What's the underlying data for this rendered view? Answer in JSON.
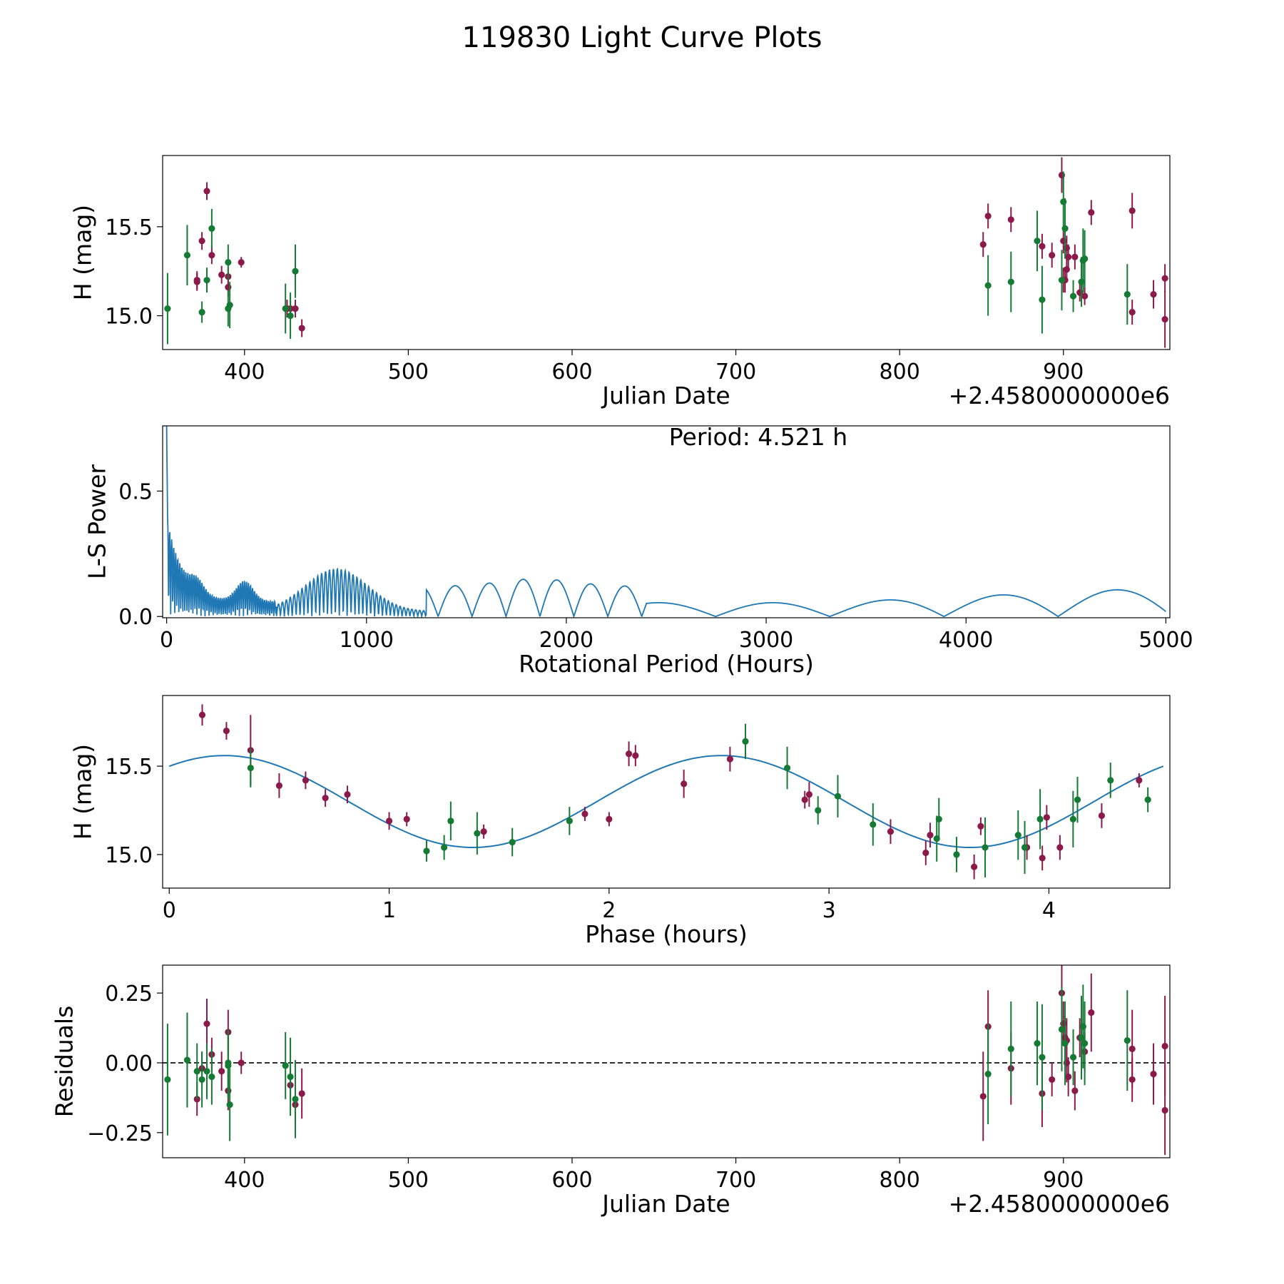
{
  "figure": {
    "title": "119830 Light Curve Plots",
    "colors": {
      "red_filter": "#8b1a4b",
      "green_filter": "#157a34",
      "model": "#1f77b4",
      "axis": "#000000"
    }
  },
  "chart_data": [
    {
      "id": "lc",
      "type": "scatter",
      "xlabel": "Julian Date",
      "ylabel": "H (mag)",
      "offset_label": "+2.4580000000e6",
      "xlim": [
        350,
        965
      ],
      "ylim": [
        14.81,
        15.9
      ],
      "xticks": [
        400,
        500,
        600,
        700,
        800,
        900
      ],
      "yticks": [
        15.0,
        15.5
      ],
      "series": [
        {
          "name": "red",
          "points": [
            [
              371,
              15.19
            ],
            [
              371,
              15.2
            ],
            [
              374,
              15.42
            ],
            [
              377,
              15.7
            ],
            [
              380,
              15.34
            ],
            [
              386,
              15.23
            ],
            [
              390,
              15.16
            ],
            [
              390,
              15.22
            ],
            [
              398,
              15.3
            ],
            [
              426,
              15.04
            ],
            [
              428,
              15.04
            ],
            [
              431,
              15.04
            ],
            [
              435,
              14.93
            ],
            [
              851,
              15.4
            ],
            [
              854,
              15.56
            ],
            [
              868,
              15.54
            ],
            [
              887,
              15.39
            ],
            [
              893,
              15.34
            ],
            [
              899,
              15.79
            ],
            [
              900,
              15.42
            ],
            [
              900,
              15.2
            ],
            [
              901,
              15.2
            ],
            [
              902,
              15.38
            ],
            [
              902,
              15.26
            ],
            [
              903,
              15.33
            ],
            [
              907,
              15.33
            ],
            [
              910,
              15.13
            ],
            [
              913,
              15.11
            ],
            [
              917,
              15.58
            ],
            [
              942,
              15.59
            ],
            [
              942,
              15.02
            ],
            [
              955,
              15.12
            ],
            [
              962,
              15.21
            ],
            [
              962,
              14.98
            ]
          ],
          "errors": [
            0.05,
            0.05,
            0.05,
            0.05,
            0.05,
            0.05,
            0.05,
            0.05,
            0.03,
            0.05,
            0.05,
            0.05,
            0.05,
            0.07,
            0.07,
            0.07,
            0.07,
            0.07,
            0.1,
            0.07,
            0.07,
            0.07,
            0.07,
            0.07,
            0.07,
            0.07,
            0.05,
            0.05,
            0.07,
            0.1,
            0.07,
            0.08,
            0.08,
            0.16
          ]
        },
        {
          "name": "green",
          "points": [
            [
              353,
              15.04
            ],
            [
              365,
              15.34
            ],
            [
              374,
              15.02
            ],
            [
              377,
              15.2
            ],
            [
              380,
              15.49
            ],
            [
              390,
              15.04
            ],
            [
              390,
              15.3
            ],
            [
              391,
              15.06
            ],
            [
              425,
              15.04
            ],
            [
              428,
              15.0
            ],
            [
              431,
              15.25
            ],
            [
              854,
              15.17
            ],
            [
              868,
              15.19
            ],
            [
              884,
              15.42
            ],
            [
              887,
              15.09
            ],
            [
              899,
              15.2
            ],
            [
              900,
              15.64
            ],
            [
              901,
              15.49
            ],
            [
              906,
              15.11
            ],
            [
              911,
              15.19
            ],
            [
              912,
              15.31
            ],
            [
              913,
              15.32
            ],
            [
              939,
              15.12
            ]
          ],
          "errors": [
            0.2,
            0.17,
            0.06,
            0.07,
            0.11,
            0.1,
            0.1,
            0.13,
            0.14,
            0.13,
            0.15,
            0.17,
            0.17,
            0.17,
            0.19,
            0.17,
            0.17,
            0.17,
            0.09,
            0.14,
            0.18,
            0.16,
            0.17
          ]
        }
      ]
    },
    {
      "id": "ls",
      "type": "line",
      "xlabel": "Rotational Period (Hours)",
      "ylabel": "L-S Power",
      "annotation": "Period: 4.521 h",
      "xlim": [
        -20,
        5020
      ],
      "ylim": [
        -0.005,
        0.76
      ],
      "xticks": [
        0,
        1000,
        2000,
        3000,
        4000,
        5000
      ],
      "yticks": [
        0.0,
        0.5
      ],
      "series": [
        {
          "name": "power",
          "generator": "periodogram",
          "x_range": [
            0,
            5000
          ],
          "peak": [
            3,
            0.76
          ]
        }
      ]
    },
    {
      "id": "phase",
      "type": "scatter",
      "xlabel": "Phase (hours)",
      "ylabel": "H (mag)",
      "xlim": [
        -0.03,
        4.55
      ],
      "ylim": [
        14.81,
        15.9
      ],
      "xticks": [
        0,
        1,
        2,
        3,
        4
      ],
      "xtick_labels": [
        "0",
        "1",
        "2",
        "3",
        "4"
      ],
      "yticks": [
        15.0,
        15.5
      ],
      "model": {
        "mean": 15.3,
        "amplitude": 0.26,
        "period_hours": 2.26,
        "phase_peak": 0.25,
        "x_range": [
          0,
          4.52
        ]
      },
      "series": [
        {
          "name": "red",
          "points": [
            [
              0.15,
              15.79
            ],
            [
              0.26,
              15.7
            ],
            [
              0.37,
              15.59
            ],
            [
              0.5,
              15.39
            ],
            [
              0.62,
              15.42
            ],
            [
              0.71,
              15.32
            ],
            [
              0.81,
              15.34
            ],
            [
              1.0,
              15.19
            ],
            [
              1.08,
              15.2
            ],
            [
              1.43,
              15.13
            ],
            [
              1.89,
              15.23
            ],
            [
              2.0,
              15.2
            ],
            [
              2.09,
              15.57
            ],
            [
              2.12,
              15.56
            ],
            [
              2.34,
              15.4
            ],
            [
              2.55,
              15.54
            ],
            [
              2.89,
              15.31
            ],
            [
              2.91,
              15.34
            ],
            [
              3.28,
              15.13
            ],
            [
              3.44,
              15.01
            ],
            [
              3.46,
              15.11
            ],
            [
              3.66,
              14.93
            ],
            [
              3.69,
              15.16
            ],
            [
              3.9,
              15.04
            ],
            [
              3.97,
              14.98
            ],
            [
              3.99,
              15.21
            ],
            [
              4.05,
              15.04
            ],
            [
              4.24,
              15.22
            ],
            [
              4.41,
              15.42
            ]
          ],
          "errors": [
            0.06,
            0.05,
            0.2,
            0.07,
            0.05,
            0.05,
            0.05,
            0.05,
            0.04,
            0.04,
            0.04,
            0.04,
            0.07,
            0.06,
            0.08,
            0.07,
            0.05,
            0.07,
            0.07,
            0.07,
            0.07,
            0.07,
            0.05,
            0.07,
            0.07,
            0.07,
            0.07,
            0.07,
            0.04
          ]
        },
        {
          "name": "green",
          "points": [
            [
              0.37,
              15.49
            ],
            [
              1.17,
              15.02
            ],
            [
              1.25,
              15.04
            ],
            [
              1.28,
              15.19
            ],
            [
              1.4,
              15.12
            ],
            [
              1.56,
              15.07
            ],
            [
              1.82,
              15.19
            ],
            [
              2.62,
              15.64
            ],
            [
              2.81,
              15.49
            ],
            [
              2.95,
              15.25
            ],
            [
              3.04,
              15.33
            ],
            [
              3.2,
              15.17
            ],
            [
              3.49,
              15.09
            ],
            [
              3.5,
              15.2
            ],
            [
              3.58,
              15.0
            ],
            [
              3.71,
              15.04
            ],
            [
              3.86,
              15.11
            ],
            [
              3.89,
              15.04
            ],
            [
              3.96,
              15.2
            ],
            [
              4.11,
              15.2
            ],
            [
              4.13,
              15.31
            ],
            [
              4.28,
              15.42
            ],
            [
              4.45,
              15.31
            ]
          ],
          "errors": [
            0.11,
            0.06,
            0.07,
            0.11,
            0.12,
            0.08,
            0.08,
            0.1,
            0.12,
            0.08,
            0.12,
            0.12,
            0.13,
            0.12,
            0.1,
            0.17,
            0.14,
            0.15,
            0.17,
            0.16,
            0.13,
            0.1,
            0.07
          ]
        }
      ]
    },
    {
      "id": "resid",
      "type": "scatter",
      "xlabel": "Julian Date",
      "ylabel": "Residuals",
      "offset_label": "+2.4580000000e6",
      "xlim": [
        350,
        965
      ],
      "ylim": [
        -0.34,
        0.35
      ],
      "xticks": [
        400,
        500,
        600,
        700,
        800,
        900
      ],
      "yticks": [
        -0.25,
        0.0,
        0.25
      ],
      "ytick_labels": [
        "−0.25",
        "0.00",
        "0.25"
      ],
      "hline": 0,
      "series": [
        {
          "name": "red",
          "points": [
            [
              371,
              -0.13
            ],
            [
              374,
              -0.02
            ],
            [
              377,
              0.14
            ],
            [
              380,
              0.03
            ],
            [
              386,
              -0.03
            ],
            [
              390,
              -0.1
            ],
            [
              390,
              0.11
            ],
            [
              398,
              0.0
            ],
            [
              428,
              -0.08
            ],
            [
              431,
              -0.15
            ],
            [
              435,
              -0.11
            ],
            [
              851,
              -0.12
            ],
            [
              854,
              0.13
            ],
            [
              868,
              -0.02
            ],
            [
              887,
              -0.11
            ],
            [
              893,
              -0.06
            ],
            [
              899,
              0.25
            ],
            [
              900,
              0.14
            ],
            [
              901,
              0.09
            ],
            [
              902,
              0.08
            ],
            [
              902,
              0.0
            ],
            [
              903,
              -0.05
            ],
            [
              907,
              -0.1
            ],
            [
              910,
              0.09
            ],
            [
              913,
              0.04
            ],
            [
              917,
              0.18
            ],
            [
              942,
              0.05
            ],
            [
              942,
              -0.06
            ],
            [
              955,
              -0.04
            ],
            [
              962,
              0.06
            ],
            [
              962,
              -0.17
            ]
          ],
          "errors": [
            0.06,
            0.06,
            0.09,
            0.06,
            0.07,
            0.07,
            0.08,
            0.04,
            0.06,
            0.06,
            0.09,
            0.16,
            0.13,
            0.13,
            0.12,
            0.06,
            0.1,
            0.08,
            0.08,
            0.08,
            0.07,
            0.07,
            0.07,
            0.07,
            0.07,
            0.14,
            0.14,
            0.08,
            0.11,
            0.18,
            0.16
          ]
        },
        {
          "name": "green",
          "points": [
            [
              353,
              -0.06
            ],
            [
              365,
              0.01
            ],
            [
              371,
              -0.03
            ],
            [
              374,
              -0.06
            ],
            [
              377,
              -0.03
            ],
            [
              380,
              -0.05
            ],
            [
              390,
              -0.01
            ],
            [
              390,
              0.0
            ],
            [
              391,
              -0.15
            ],
            [
              425,
              -0.01
            ],
            [
              428,
              -0.05
            ],
            [
              431,
              -0.13
            ],
            [
              854,
              -0.04
            ],
            [
              868,
              0.05
            ],
            [
              884,
              0.07
            ],
            [
              887,
              0.02
            ],
            [
              899,
              0.12
            ],
            [
              901,
              0.07
            ],
            [
              906,
              0.02
            ],
            [
              911,
              0.09
            ],
            [
              912,
              0.13
            ],
            [
              913,
              0.07
            ],
            [
              939,
              0.08
            ]
          ],
          "errors": [
            0.2,
            0.17,
            0.1,
            0.1,
            0.1,
            0.1,
            0.12,
            0.12,
            0.13,
            0.12,
            0.14,
            0.14,
            0.18,
            0.17,
            0.15,
            0.19,
            0.15,
            0.15,
            0.1,
            0.15,
            0.15,
            0.15,
            0.18
          ]
        }
      ]
    }
  ]
}
